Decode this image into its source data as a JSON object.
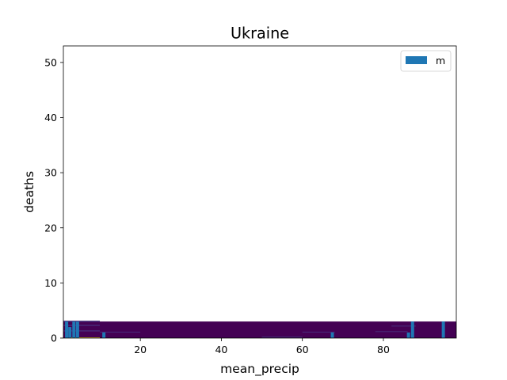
{
  "chart_data": {
    "type": "bar",
    "title": "Ukraine",
    "xlabel": "mean_precip",
    "ylabel": "deaths",
    "xlim": [
      1,
      98
    ],
    "ylim": [
      0,
      53
    ],
    "xticks": [
      20,
      40,
      60,
      80
    ],
    "yticks": [
      0,
      10,
      20,
      30,
      40,
      50
    ],
    "grid": false,
    "legend": {
      "placement": "top-right",
      "entries": [
        "m"
      ]
    },
    "series": [
      {
        "name": "m",
        "color": "#1f77b4",
        "x": [
          1.8,
          2.6,
          3.6,
          4.5,
          11.0,
          67.4,
          86.2,
          87.2,
          94.8
        ],
        "values": [
          3,
          2,
          3,
          3,
          1,
          1,
          1,
          3,
          3
        ]
      }
    ],
    "background_heatmap": {
      "type": "heatmap",
      "colormap": "viridis",
      "y_range": [
        0,
        3
      ],
      "dominant_color": "#440154"
    }
  }
}
